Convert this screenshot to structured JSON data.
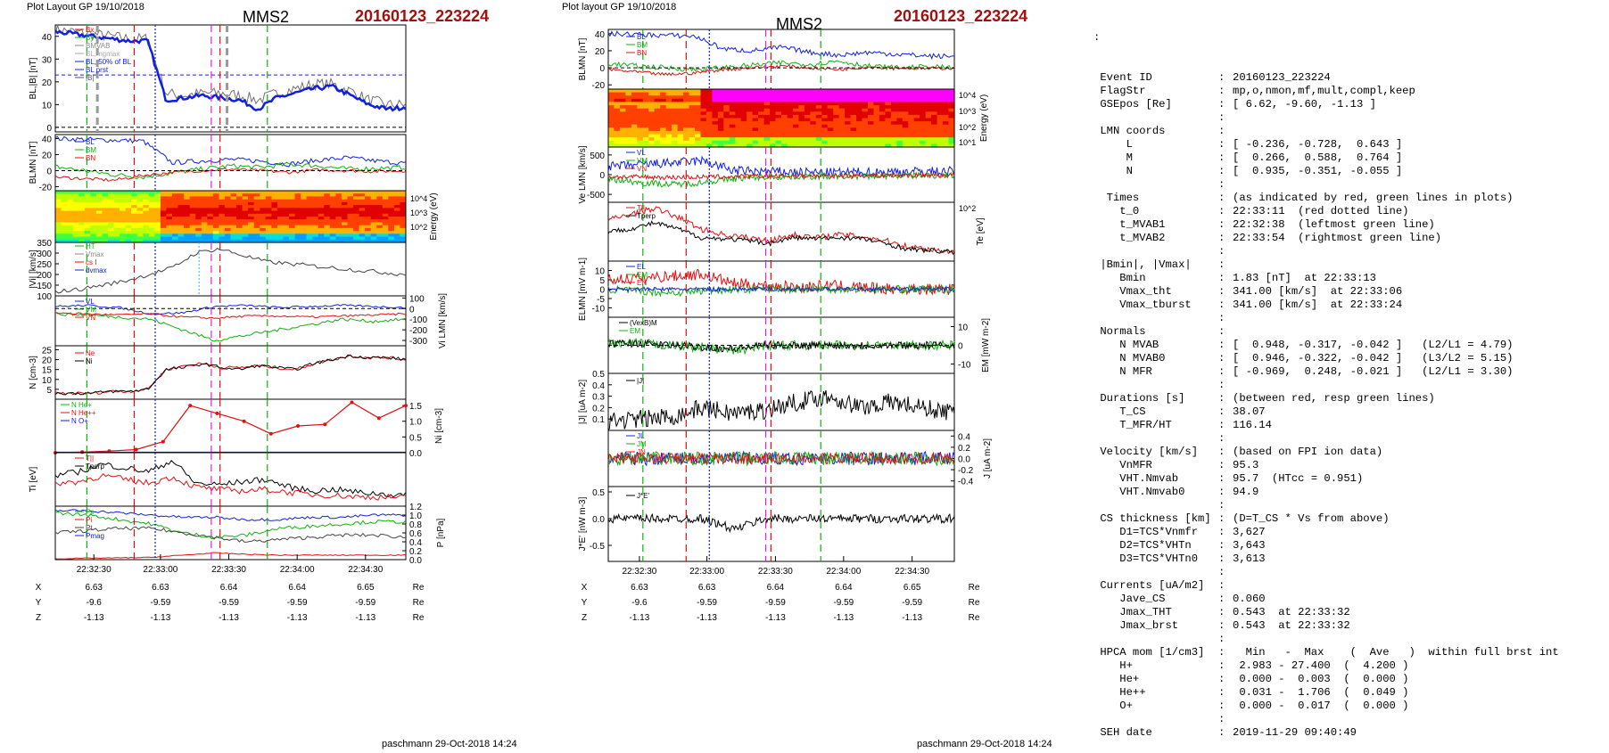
{
  "left_panel": {
    "plot_layout": "Plot Layout GP 19/10/2018",
    "spacecraft": "MMS2",
    "event": "20160123_223224",
    "footer": "paschmann 29-Oct-2018 14:24",
    "time_ticks": [
      "22:32:30",
      "22:33:00",
      "22:33:30",
      "22:34:00",
      "22:34:30"
    ],
    "pos_rows": [
      {
        "label": "X",
        "values": [
          "6.63",
          "6.63",
          "6.64",
          "6.64",
          "6.65"
        ],
        "unit": "Re"
      },
      {
        "label": "Y",
        "values": [
          "-9.6",
          "-9.59",
          "-9.59",
          "-9.59",
          "-9.59"
        ],
        "unit": "Re"
      },
      {
        "label": "Z",
        "values": [
          "-1.13",
          "-1.13",
          "-1.13",
          "-1.13",
          "-1.13"
        ],
        "unit": "Re"
      }
    ]
  },
  "mid_panel": {
    "plot_layout": "Plot layout GP 19/10/2018",
    "spacecraft": "MMS2",
    "event": "20160123_223224",
    "footer": "paschmann 29-Oct-2018 14:24",
    "time_ticks": [
      "22:32:30",
      "22:33:00",
      "22:33:30",
      "22:34:00",
      "22:34:30"
    ],
    "pos_rows": [
      {
        "label": "X",
        "values": [
          "6.63",
          "6.63",
          "6.64",
          "6.64",
          "6.65"
        ],
        "unit": "Re"
      },
      {
        "label": "Y",
        "values": [
          "-9.6",
          "-9.59",
          "-9.59",
          "-9.59",
          "-9.59"
        ],
        "unit": "Re"
      },
      {
        "label": "Z",
        "values": [
          "-1.13",
          "-1.13",
          "-1.13",
          "-1.13",
          "-1.13"
        ],
        "unit": "Re"
      }
    ]
  },
  "colors": {
    "red": "#e01010",
    "green": "#10b010",
    "blue": "#1020e0",
    "magenta": "#e020e0",
    "black": "#000000",
    "dark_red": "#a01010"
  },
  "chart_data": [
    {
      "type": "line",
      "panel": "left-1",
      "ylabel": "BL,|B| [nT]",
      "ylim": [
        -2,
        45
      ],
      "yticks": [
        "0",
        "10",
        "20",
        "30",
        "40"
      ],
      "legend": [
        "Bx",
        "By",
        "BMVAB",
        "BL,mgmax",
        "BL, 50% of BL",
        "BL prst",
        "|B|"
      ],
      "series": [
        {
          "name": "BL",
          "values": [
            42,
            41,
            40,
            39,
            38,
            38,
            12,
            13,
            14,
            13,
            12,
            8,
            13,
            15,
            17,
            18,
            14,
            10,
            8,
            9
          ]
        },
        {
          "name": "|B|",
          "values": [
            43,
            42,
            41,
            40,
            39,
            39,
            15,
            14,
            15,
            15,
            14,
            12,
            15,
            17,
            19,
            19,
            16,
            12,
            10,
            10
          ]
        }
      ]
    },
    {
      "type": "line",
      "panel": "left-2",
      "ylabel": "BLMN [nT]",
      "ylim": [
        -25,
        45
      ],
      "yticks": [
        "-20",
        "0",
        "20",
        "40"
      ],
      "legend": [
        "BL",
        "BM",
        "BN"
      ]
    },
    {
      "type": "heatmap",
      "panel": "left-3",
      "ylabel": "Energy (eV)",
      "yticks": [
        "10^4",
        "10^3",
        "10^2"
      ]
    },
    {
      "type": "line",
      "panel": "left-4",
      "ylabel": "|Vi| [km/s]",
      "ylim": [
        100,
        350
      ],
      "yticks": [
        "100",
        "150",
        "200",
        "250",
        "300",
        "350"
      ],
      "legend": [
        "HT",
        "Vmax",
        "cs I",
        "dvmax"
      ]
    },
    {
      "type": "line",
      "panel": "left-5",
      "ylabel": "Vi LMN [km/s]",
      "ylim": [
        -350,
        120
      ],
      "yticks": [
        "100",
        "0",
        "-100",
        "-200",
        "-300"
      ],
      "legend": [
        "VL",
        "VM",
        "VN"
      ]
    },
    {
      "type": "line",
      "panel": "left-6",
      "ylabel": "N [cm-3]",
      "ylim": [
        0,
        27
      ],
      "yticks": [
        "5",
        "10",
        "15",
        "20",
        "25"
      ],
      "legend": [
        "Ne",
        "Ni"
      ],
      "series": [
        {
          "name": "Ne",
          "values": [
            3,
            3,
            3,
            4,
            4,
            5,
            15,
            17,
            18,
            16,
            16,
            17,
            16,
            15,
            18,
            20,
            22,
            21,
            21,
            20
          ]
        },
        {
          "name": "Ni",
          "values": [
            3,
            3,
            3,
            4,
            4,
            5,
            15,
            16,
            18,
            16,
            15,
            17,
            16,
            15,
            18,
            20,
            22,
            21,
            21,
            20
          ]
        }
      ]
    },
    {
      "type": "line",
      "panel": "left-7",
      "ylabel": "Ni [cm-3]",
      "ylim": [
        0,
        1.7
      ],
      "yticks": [
        "0.0",
        "0.5",
        "1.0",
        "1.5"
      ],
      "legend": [
        "N He+",
        "N He++",
        "N O+"
      ],
      "series": [
        {
          "name": "N He++",
          "values": [
            0.0,
            0.02,
            0.05,
            0.1,
            0.35,
            1.5,
            1.25,
            1.0,
            0.6,
            0.85,
            0.9,
            1.6,
            1.1,
            1.5
          ]
        }
      ]
    },
    {
      "type": "line",
      "panel": "left-8",
      "ylabel": "Ti [eV]",
      "legend": [
        "T||",
        "Tperp"
      ]
    },
    {
      "type": "line",
      "panel": "left-9",
      "ylabel": "P [nPa]",
      "ylim": [
        0,
        1.2
      ],
      "yticks": [
        "0.0",
        "0.2",
        "0.4",
        "0.6",
        "0.8",
        "1.0",
        "1.2"
      ],
      "legend": [
        "Pe",
        "Pi",
        "Pt",
        "Pmag"
      ]
    },
    {
      "type": "line",
      "panel": "mid-1",
      "ylabel": "BLMN [nT]",
      "ylim": [
        -25,
        45
      ],
      "yticks": [
        "-20",
        "0",
        "20",
        "40"
      ],
      "legend": [
        "BL",
        "BM",
        "BN"
      ]
    },
    {
      "type": "heatmap",
      "panel": "mid-2",
      "ylabel": "Energy (eV)",
      "yticks": [
        "10^4",
        "10^3",
        "10^2",
        "10^1"
      ]
    },
    {
      "type": "line",
      "panel": "mid-3",
      "ylabel": "Ve LMN [km/s]",
      "ylim": [
        -700,
        700
      ],
      "yticks": [
        "500",
        "0",
        "-500"
      ],
      "legend": [
        "VL",
        "VM",
        "VN"
      ]
    },
    {
      "type": "line",
      "panel": "mid-4",
      "ylabel": "Te [eV]",
      "yticks": [
        "10^2"
      ],
      "legend": [
        "T||",
        "Tperp"
      ]
    },
    {
      "type": "line",
      "panel": "mid-5",
      "ylabel": "ELMN [mV m-1]",
      "ylim": [
        -15,
        15
      ],
      "yticks": [
        "10",
        "5",
        "0",
        "-5",
        "-10"
      ],
      "legend": [
        "EL",
        "EM",
        "EN"
      ]
    },
    {
      "type": "line",
      "panel": "mid-6",
      "ylabel": "EM [mW m-2]",
      "ylim": [
        -15,
        15
      ],
      "yticks": [
        "10",
        "0",
        "-10"
      ],
      "legend": [
        "(VexB)M",
        "EM"
      ]
    },
    {
      "type": "line",
      "panel": "mid-7",
      "ylabel": "|J| [uA m-2]",
      "ylim": [
        0,
        0.5
      ],
      "yticks": [
        "0.5",
        "0.4",
        "0.3",
        "0.2",
        "0.1"
      ],
      "legend": [
        "|J|"
      ]
    },
    {
      "type": "line",
      "panel": "mid-8",
      "ylabel": "J [uA m-2]",
      "ylim": [
        -0.5,
        0.5
      ],
      "yticks": [
        "0.4",
        "0.2",
        "0.0",
        "-0.2",
        "-0.4"
      ],
      "legend": [
        "JL",
        "JM",
        "JN"
      ]
    },
    {
      "type": "line",
      "panel": "mid-9",
      "ylabel": "J*E' [nW m-3]",
      "ylim": [
        -0.8,
        0.6
      ],
      "yticks": [
        "0.5",
        "0.0",
        "-0.5"
      ],
      "legend": [
        "J*E'"
      ]
    }
  ],
  "info": {
    "colon_line": ":",
    "rows": [
      {
        "k": " Event ID",
        "v": "20160123_223224"
      },
      {
        "k": " FlagStr",
        "v": "mp,o,nmon,mf,mult,compl,keep"
      },
      {
        "k": " GSEpos [Re]",
        "v": "[ 6.62, -9.60, -1.13 ]"
      },
      {
        "k": "",
        "v": ""
      },
      {
        "k": " LMN coords",
        "v": ""
      },
      {
        "k": "     L",
        "v": "[ -0.236, -0.728,  0.643 ]"
      },
      {
        "k": "     M",
        "v": "[  0.266,  0.588,  0.764 ]"
      },
      {
        "k": "     N",
        "v": "[  0.935, -0.351, -0.055 ]"
      },
      {
        "k": "",
        "v": ""
      },
      {
        "k": "  Times",
        "v": "(as indicated by red, green lines in plots)"
      },
      {
        "k": "    t_0",
        "v": "22:33:11  (red dotted line)"
      },
      {
        "k": "    t_MVAB1",
        "v": "22:32:38  (leftmost green line)"
      },
      {
        "k": "    t_MVAB2",
        "v": "22:33:54  (rightmost green line)"
      },
      {
        "k": "",
        "v": ""
      },
      {
        "k": " |Bmin|, |Vmax|",
        "v": ""
      },
      {
        "k": "    Bmin",
        "v": "1.83 [nT]  at 22:33:13"
      },
      {
        "k": "    Vmax_tht",
        "v": "341.00 [km/s]  at 22:33:06"
      },
      {
        "k": "    Vmax_tburst",
        "v": "341.00 [km/s]  at 22:33:24"
      },
      {
        "k": "",
        "v": ""
      },
      {
        "k": " Normals",
        "v": ""
      },
      {
        "k": "    N MVAB",
        "v": "[  0.948, -0.317, -0.042 ]   (L2/L1 = 4.79)"
      },
      {
        "k": "    N MVAB0",
        "v": "[  0.946, -0.322, -0.042 ]   (L3/L2 = 5.15)"
      },
      {
        "k": "    N MFR",
        "v": "[ -0.969,  0.248, -0.021 ]   (L2/L1 = 3.30)"
      },
      {
        "k": "",
        "v": ""
      },
      {
        "k": " Durations [s]",
        "v": "(between red, resp green lines)"
      },
      {
        "k": "    T_CS",
        "v": "38.07"
      },
      {
        "k": "    T_MFR/HT",
        "v": "116.14"
      },
      {
        "k": "",
        "v": ""
      },
      {
        "k": " Velocity [km/s]",
        "v": "(based on FPI ion data)"
      },
      {
        "k": "    VnMFR",
        "v": "95.3"
      },
      {
        "k": "    VHT.Nmvab",
        "v": "95.7  (HTcc = 0.951)"
      },
      {
        "k": "    VHT.Nmvab0",
        "v": "94.9"
      },
      {
        "k": "",
        "v": ""
      },
      {
        "k": " CS thickness [km]",
        "v": "(D=T_CS * Vs from above)"
      },
      {
        "k": "    D1=TCS*Vnmfr",
        "v": "3,627"
      },
      {
        "k": "    D2=TCS*VHTn",
        "v": "3,643"
      },
      {
        "k": "    D3=TCS*VHTn0",
        "v": "3,613"
      },
      {
        "k": "",
        "v": ""
      },
      {
        "k": " Currents [uA/m2]",
        "v": ""
      },
      {
        "k": "    Jave_CS",
        "v": "0.060"
      },
      {
        "k": "    Jmax_THT",
        "v": "0.543  at 22:33:32"
      },
      {
        "k": "    Jmax_brst",
        "v": "0.543  at 22:33:32"
      },
      {
        "k": "",
        "v": ""
      },
      {
        "k": " HPCA mom [1/cm3]",
        "v": "  Min   -  Max    (  Ave   )  within full brst int"
      },
      {
        "k": "    H+",
        "v": " 2.983 - 27.400  (  4.200 )"
      },
      {
        "k": "    He+",
        "v": " 0.000 -  0.003  (  0.000 )"
      },
      {
        "k": "    He++",
        "v": " 0.031 -  1.706  (  0.049 )"
      },
      {
        "k": "    O+",
        "v": " 0.000 -  0.017  (  0.000 )"
      },
      {
        "k": "",
        "v": ""
      },
      {
        "k": " SEH date",
        "v": "2019-11-29 09:40:49"
      }
    ]
  }
}
